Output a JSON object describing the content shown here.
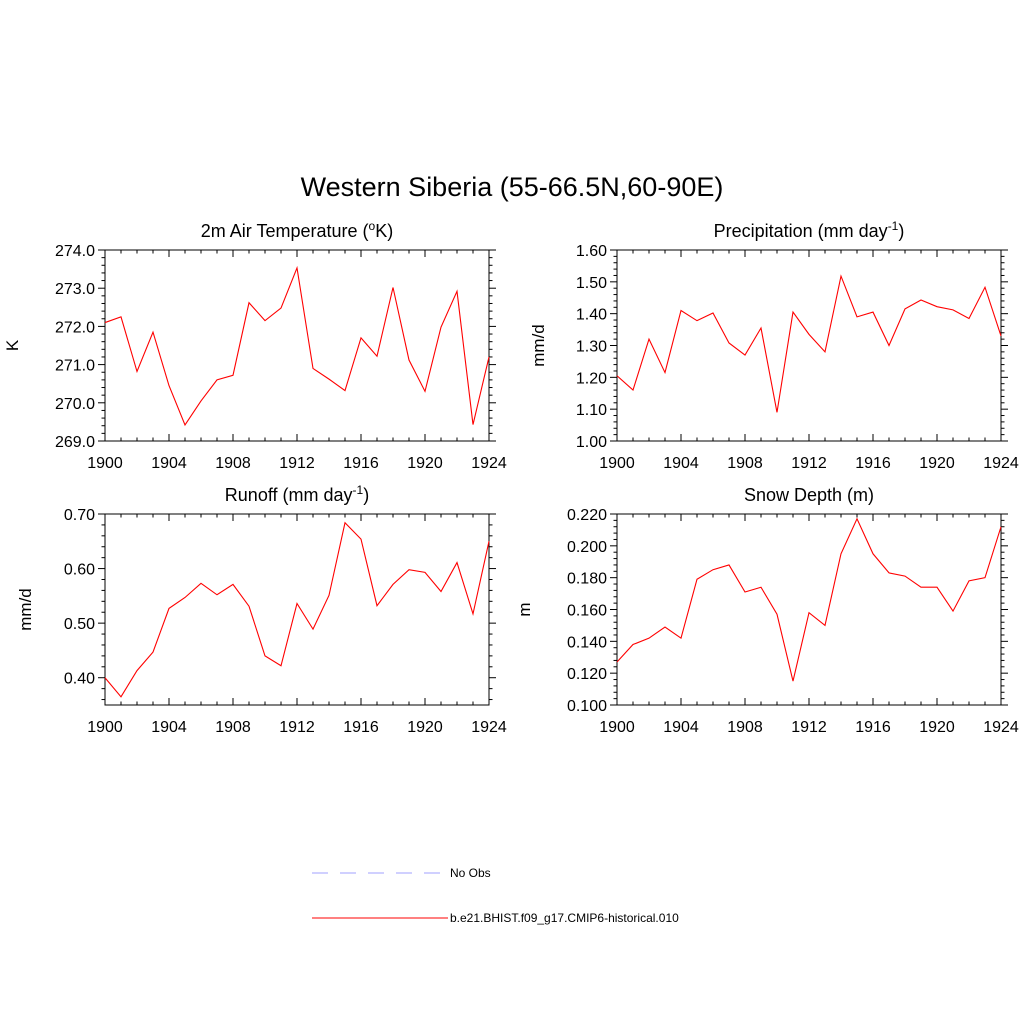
{
  "figure": {
    "title": "Western Siberia (55-66.5N,60-90E)"
  },
  "legend": {
    "items": [
      {
        "label": "No Obs",
        "color": "#b3b3ff",
        "style": "dashed"
      },
      {
        "label": "b.e21.BHIST.f09_g17.CMIP6-historical.010",
        "color": "#ff0000",
        "style": "solid"
      }
    ]
  },
  "chart_data": [
    {
      "type": "line",
      "title": "2m Air Temperature (",
      "title_sup": "o",
      "title_tail": "K)",
      "xlabel": "",
      "ylabel": "K",
      "xlim": [
        1900,
        1924
      ],
      "ylim": [
        269.0,
        274.0
      ],
      "xticks": [
        1900,
        1904,
        1908,
        1912,
        1916,
        1920,
        1924
      ],
      "yticks": [
        "269.0",
        "270.0",
        "271.0",
        "272.0",
        "273.0",
        "274.0"
      ],
      "grid": false,
      "series": [
        {
          "name": "b.e21.BHIST.f09_g17.CMIP6-historical.010",
          "color": "#ff0000",
          "x": [
            1900,
            1901,
            1902,
            1903,
            1904,
            1905,
            1906,
            1907,
            1908,
            1909,
            1910,
            1911,
            1912,
            1913,
            1914,
            1915,
            1916,
            1917,
            1918,
            1919,
            1920,
            1921,
            1922,
            1923,
            1924
          ],
          "y": [
            272.1,
            272.25,
            270.82,
            271.85,
            270.45,
            269.42,
            270.05,
            270.6,
            270.72,
            272.62,
            272.15,
            272.48,
            273.53,
            270.9,
            270.62,
            270.32,
            271.7,
            271.22,
            273.02,
            271.12,
            270.3,
            271.98,
            272.92,
            269.43,
            271.2
          ]
        }
      ]
    },
    {
      "type": "line",
      "title": "Precipitation (mm day",
      "title_sup": "-1",
      "title_tail": ")",
      "xlabel": "",
      "ylabel": "mm/d",
      "xlim": [
        1900,
        1924
      ],
      "ylim": [
        1.0,
        1.6
      ],
      "xticks": [
        1900,
        1904,
        1908,
        1912,
        1916,
        1920,
        1924
      ],
      "yticks": [
        "1.00",
        "1.10",
        "1.20",
        "1.30",
        "1.40",
        "1.50",
        "1.60"
      ],
      "grid": false,
      "series": [
        {
          "name": "b.e21.BHIST.f09_g17.CMIP6-historical.010",
          "color": "#ff0000",
          "x": [
            1900,
            1901,
            1902,
            1903,
            1904,
            1905,
            1906,
            1907,
            1908,
            1909,
            1910,
            1911,
            1912,
            1913,
            1914,
            1915,
            1916,
            1917,
            1918,
            1919,
            1920,
            1921,
            1922,
            1923,
            1924
          ],
          "y": [
            1.205,
            1.16,
            1.32,
            1.215,
            1.41,
            1.378,
            1.402,
            1.308,
            1.27,
            1.355,
            1.09,
            1.405,
            1.335,
            1.28,
            1.518,
            1.39,
            1.405,
            1.3,
            1.415,
            1.443,
            1.422,
            1.412,
            1.385,
            1.483,
            1.33
          ]
        }
      ]
    },
    {
      "type": "line",
      "title": "Runoff (mm day",
      "title_sup": "-1",
      "title_tail": ")",
      "xlabel": "",
      "ylabel": "mm/d",
      "xlim": [
        1900,
        1924
      ],
      "ylim": [
        0.35,
        0.7
      ],
      "xticks": [
        1900,
        1904,
        1908,
        1912,
        1916,
        1920,
        1924
      ],
      "yticks": [
        "0.40",
        "0.50",
        "0.60",
        "0.70"
      ],
      "grid": false,
      "series": [
        {
          "name": "b.e21.BHIST.f09_g17.CMIP6-historical.010",
          "color": "#ff0000",
          "x": [
            1900,
            1901,
            1902,
            1903,
            1904,
            1905,
            1906,
            1907,
            1908,
            1909,
            1910,
            1911,
            1912,
            1913,
            1914,
            1915,
            1916,
            1917,
            1918,
            1919,
            1920,
            1921,
            1922,
            1923,
            1924
          ],
          "y": [
            0.4,
            0.365,
            0.413,
            0.447,
            0.527,
            0.547,
            0.573,
            0.552,
            0.571,
            0.531,
            0.44,
            0.422,
            0.536,
            0.489,
            0.551,
            0.684,
            0.654,
            0.532,
            0.571,
            0.598,
            0.593,
            0.558,
            0.611,
            0.517,
            0.65
          ]
        }
      ]
    },
    {
      "type": "line",
      "title": "Snow Depth (m)",
      "title_sup": "",
      "title_tail": "",
      "xlabel": "",
      "ylabel": "m",
      "xlim": [
        1900,
        1924
      ],
      "ylim": [
        0.1,
        0.22
      ],
      "xticks": [
        1900,
        1904,
        1908,
        1912,
        1916,
        1920,
        1924
      ],
      "yticks": [
        "0.100",
        "0.120",
        "0.140",
        "0.160",
        "0.180",
        "0.200",
        "0.220"
      ],
      "grid": false,
      "series": [
        {
          "name": "b.e21.BHIST.f09_g17.CMIP6-historical.010",
          "color": "#ff0000",
          "x": [
            1900,
            1901,
            1902,
            1903,
            1904,
            1905,
            1906,
            1907,
            1908,
            1909,
            1910,
            1911,
            1912,
            1913,
            1914,
            1915,
            1916,
            1917,
            1918,
            1919,
            1920,
            1921,
            1922,
            1923,
            1924
          ],
          "y": [
            0.127,
            0.138,
            0.142,
            0.149,
            0.142,
            0.179,
            0.185,
            0.188,
            0.171,
            0.174,
            0.157,
            0.115,
            0.158,
            0.15,
            0.195,
            0.217,
            0.195,
            0.183,
            0.181,
            0.174,
            0.174,
            0.159,
            0.178,
            0.18,
            0.212
          ]
        }
      ]
    }
  ]
}
